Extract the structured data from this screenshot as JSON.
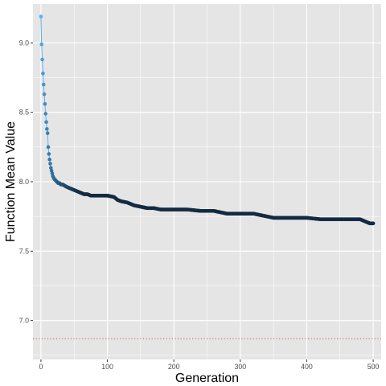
{
  "chart_data": {
    "type": "line",
    "title": "",
    "xlabel": "Generation",
    "ylabel": "Function Mean Value",
    "xlim": [
      -12,
      512
    ],
    "ylim": [
      6.72,
      9.28
    ],
    "x_ticks": [
      0,
      100,
      200,
      300,
      400,
      500
    ],
    "x_tick_labels": [
      "0",
      "100",
      "200",
      "300",
      "400",
      "500"
    ],
    "y_ticks": [
      7.0,
      7.5,
      8.0,
      8.5,
      9.0
    ],
    "y_tick_labels": [
      "7.0",
      "7.5",
      "8.0",
      "8.5",
      "9.0"
    ],
    "grid": true,
    "legend": "none",
    "colors": {
      "panel_background": "#e5e5e5",
      "grid": "#ffffff",
      "line": "#56b1f7",
      "point_start": "#56b1f7",
      "point_end": "#132b43",
      "reference_line": "#e0545a"
    },
    "reference_line": {
      "y": 6.87,
      "style": "dotted"
    },
    "series": [
      {
        "color_gradient": [
          "#56b1f7",
          "#132b43"
        ],
        "x": [
          0,
          1,
          2,
          3,
          4,
          5,
          6,
          7,
          8,
          9,
          10,
          11,
          12,
          13,
          14,
          15,
          16,
          17,
          18,
          19,
          20,
          22,
          24,
          26,
          28,
          30,
          33,
          36,
          40,
          45,
          50,
          55,
          60,
          65,
          70,
          75,
          80,
          90,
          100,
          110,
          115,
          120,
          130,
          140,
          150,
          160,
          170,
          180,
          190,
          200,
          220,
          240,
          260,
          270,
          280,
          300,
          320,
          330,
          340,
          350,
          360,
          380,
          400,
          420,
          440,
          460,
          480,
          490,
          495,
          500
        ],
        "y": [
          9.19,
          8.99,
          8.88,
          8.78,
          8.7,
          8.63,
          8.56,
          8.49,
          8.43,
          8.38,
          8.35,
          8.25,
          8.2,
          8.16,
          8.13,
          8.1,
          8.08,
          8.06,
          8.04,
          8.03,
          8.02,
          8.01,
          8.0,
          7.99,
          7.99,
          7.98,
          7.98,
          7.97,
          7.96,
          7.95,
          7.94,
          7.93,
          7.92,
          7.91,
          7.91,
          7.9,
          7.9,
          7.9,
          7.9,
          7.89,
          7.87,
          7.86,
          7.85,
          7.83,
          7.82,
          7.81,
          7.81,
          7.8,
          7.8,
          7.8,
          7.8,
          7.79,
          7.79,
          7.78,
          7.77,
          7.77,
          7.77,
          7.76,
          7.75,
          7.74,
          7.74,
          7.74,
          7.74,
          7.73,
          7.73,
          7.73,
          7.73,
          7.71,
          7.7,
          7.7
        ]
      }
    ]
  }
}
